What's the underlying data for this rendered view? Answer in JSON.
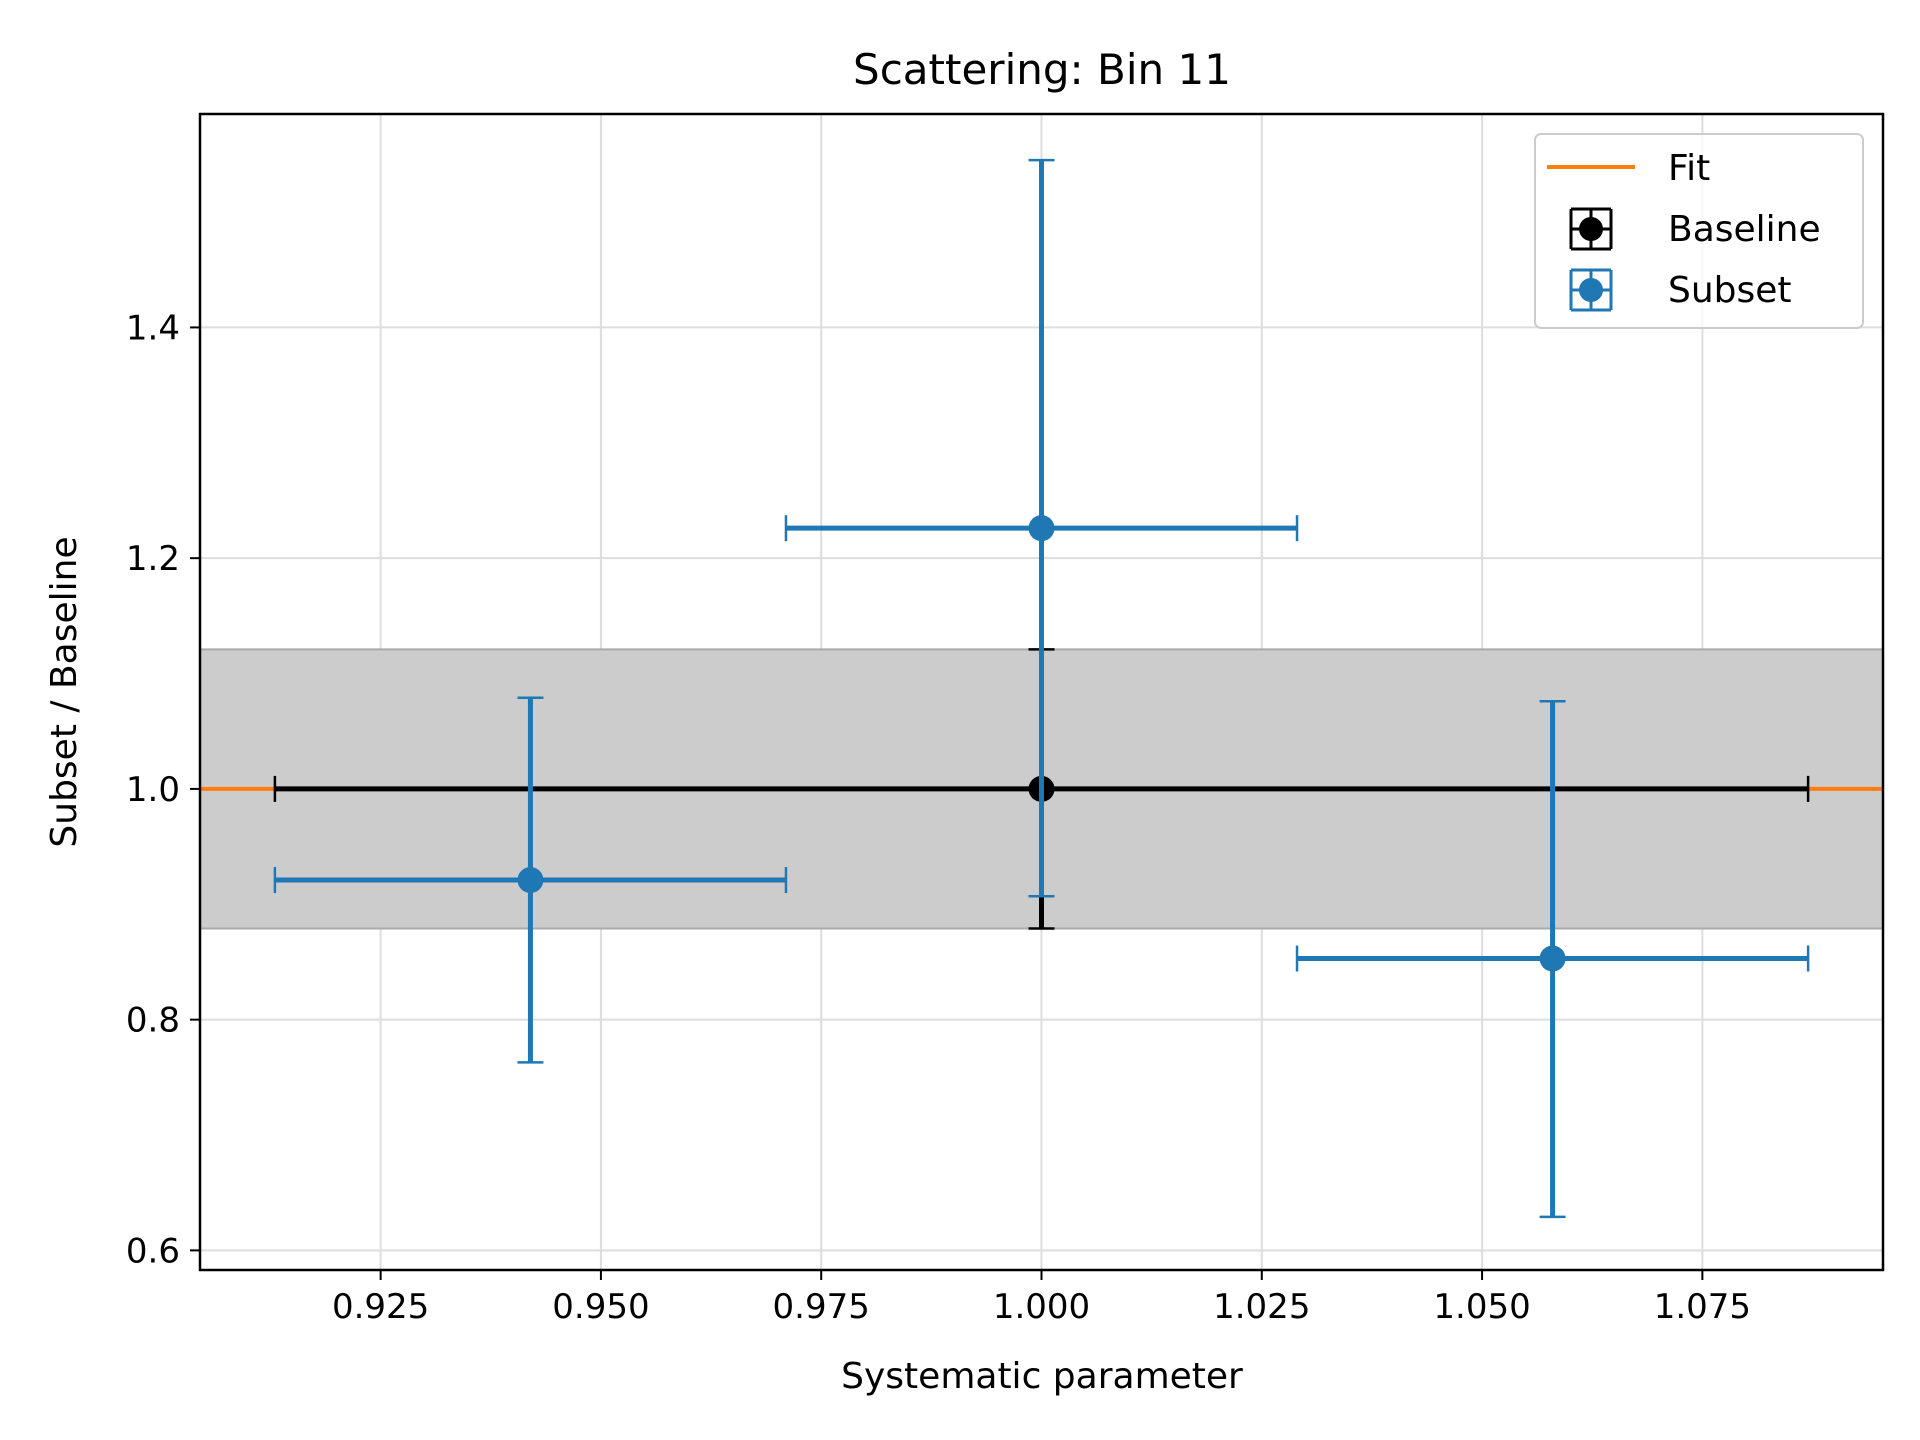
{
  "chart_data": {
    "type": "scatter",
    "title": "Scattering: Bin 11",
    "xlabel": "Systematic parameter",
    "ylabel": "Subset / Baseline",
    "xlim": [
      0.9045,
      1.0955
    ],
    "ylim": [
      0.583,
      1.585
    ],
    "x_ticks": [
      0.925,
      0.95,
      0.975,
      1.0,
      1.025,
      1.05,
      1.075
    ],
    "x_tick_labels": [
      "0.925",
      "0.950",
      "0.975",
      "1.000",
      "1.025",
      "1.050",
      "1.075"
    ],
    "y_ticks": [
      0.6,
      0.8,
      1.0,
      1.2,
      1.4
    ],
    "y_tick_labels": [
      "0.6",
      "0.8",
      "1.0",
      "1.2",
      "1.4"
    ],
    "grid": true,
    "legend_position": "top-right",
    "band": {
      "y_low": 0.879,
      "y_high": 1.121,
      "color": "#cccccc"
    },
    "fit": {
      "name": "Fit",
      "y": 1.0,
      "color": "#ff7f0e"
    },
    "series": [
      {
        "name": "Baseline",
        "color": "#000000",
        "points": [
          {
            "x": 1.0,
            "y": 1.0,
            "x_low": 0.913,
            "x_high": 1.087,
            "y_low": 0.879,
            "y_high": 1.121
          }
        ]
      },
      {
        "name": "Subset",
        "color": "#1f77b4",
        "points": [
          {
            "x": 0.942,
            "y": 0.921,
            "x_low": 0.913,
            "x_high": 0.971,
            "y_low": 0.763,
            "y_high": 1.079
          },
          {
            "x": 1.0,
            "y": 1.226,
            "x_low": 0.971,
            "x_high": 1.029,
            "y_low": 0.907,
            "y_high": 1.545
          },
          {
            "x": 1.058,
            "y": 0.853,
            "x_low": 1.029,
            "x_high": 1.087,
            "y_low": 0.629,
            "y_high": 1.076
          }
        ]
      }
    ]
  }
}
